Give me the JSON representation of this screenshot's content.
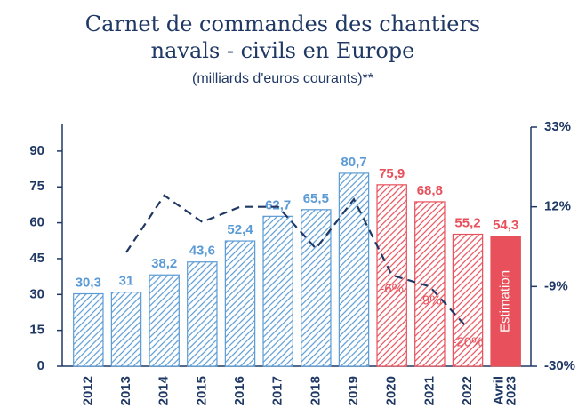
{
  "chart_data": {
    "type": "bar",
    "title": "Carnet de commandes des chantiers navals - civils en Europe",
    "subtitle": "(milliards d'euros courants)**",
    "categories": [
      "2012",
      "2013",
      "2014",
      "2015",
      "2016",
      "2017",
      "2018",
      "2019",
      "2020",
      "2021",
      "2022",
      "Avril 2023"
    ],
    "values": [
      30.3,
      31,
      38.2,
      43.6,
      52.4,
      62.7,
      65.5,
      80.7,
      75.9,
      68.8,
      55.2,
      54.3
    ],
    "value_labels": [
      "30,3",
      "31",
      "38,2",
      "43,6",
      "52,4",
      "62,7",
      "65,5",
      "80,7",
      "75,9",
      "68,8",
      "55,2",
      "54,3"
    ],
    "colors": [
      "#5b9bd5",
      "#5b9bd5",
      "#5b9bd5",
      "#5b9bd5",
      "#5b9bd5",
      "#5b9bd5",
      "#5b9bd5",
      "#5b9bd5",
      "#e8505b",
      "#e8505b",
      "#e8505b",
      "#e8505b"
    ],
    "fill_style": [
      "hatch",
      "hatch",
      "hatch",
      "hatch",
      "hatch",
      "hatch",
      "hatch",
      "hatch",
      "hatch",
      "hatch",
      "hatch",
      "solid"
    ],
    "annotation": "Estimation",
    "ylim": [
      0,
      100
    ],
    "yticks": [
      0,
      15,
      30,
      45,
      60,
      75,
      90
    ],
    "y2lim": [
      -30,
      33
    ],
    "y2ticks": [
      {
        "value": 33,
        "label": "33%"
      },
      {
        "value": 12,
        "label": "12%"
      },
      {
        "value": -9,
        "label": "-9%"
      },
      {
        "value": -30,
        "label": "-30%"
      }
    ],
    "line": {
      "axis": "y2",
      "color": "#1f3864",
      "values": [
        null,
        0,
        15,
        8,
        12,
        12,
        1,
        14,
        -6,
        -9,
        -20,
        null
      ],
      "value_labels": [
        null,
        null,
        null,
        null,
        null,
        null,
        null,
        null,
        "-6%",
        "-9%",
        "-20%",
        null
      ]
    }
  }
}
